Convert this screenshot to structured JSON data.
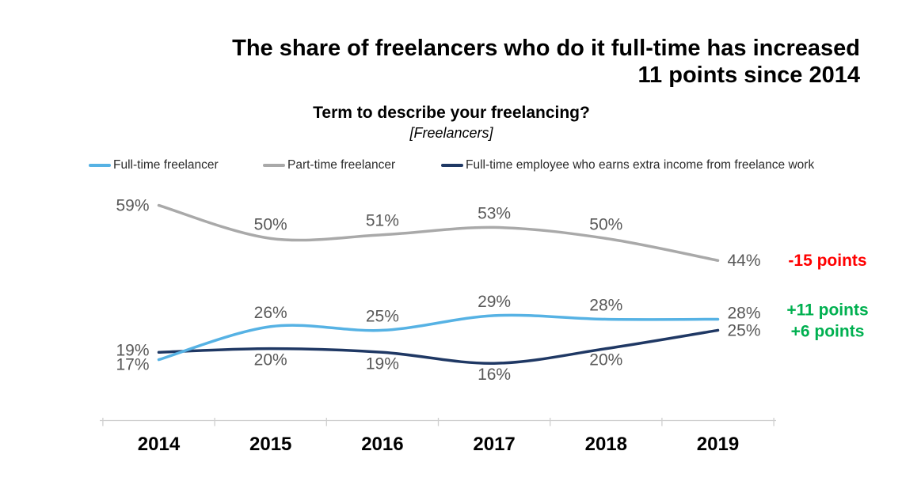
{
  "header": {
    "title": "The share of freelancers who do it full-time has increased\n11 points since 2014",
    "question": "Term to describe your freelancing?",
    "audience": "[Freelancers]"
  },
  "chart_data": {
    "type": "line",
    "title": "Term to describe your freelancing?",
    "subtitle": "[Freelancers]",
    "x": [
      "2014",
      "2015",
      "2016",
      "2017",
      "2018",
      "2019"
    ],
    "xlabel": "",
    "ylabel": "",
    "ylim": [
      0,
      65
    ],
    "grid": false,
    "legend_position": "top",
    "value_axis_visible": false,
    "label_color": "#595959",
    "axis_color": "#cfcfcf",
    "x_label_color": "#000000",
    "series": [
      {
        "name": "Full-time freelancer",
        "color": "#56b2e4",
        "values": [
          17,
          26,
          25,
          29,
          28,
          28
        ],
        "data_labels": [
          "17%",
          "26%",
          "25%",
          "29%",
          "28%",
          "28%"
        ],
        "label_positions": [
          "left-low",
          "above",
          "above",
          "above",
          "above",
          "right-high"
        ],
        "annotation": {
          "text": "+11 points",
          "color": "#00b050"
        }
      },
      {
        "name": "Part-time freelancer",
        "color": "#a9a9a9",
        "values": [
          59,
          50,
          51,
          53,
          50,
          44
        ],
        "data_labels": [
          "59%",
          "50%",
          "51%",
          "53%",
          "50%",
          "44%"
        ],
        "label_positions": [
          "left",
          "above",
          "above",
          "above",
          "above",
          "right"
        ],
        "annotation": {
          "text": "-15 points",
          "color": "#ff0000"
        }
      },
      {
        "name": "Full-time employee who earns extra income from freelance work",
        "color": "#1f3864",
        "values": [
          19,
          20,
          19,
          16,
          20,
          25
        ],
        "data_labels": [
          "19%",
          "20%",
          "19%",
          "16%",
          "20%",
          "25%"
        ],
        "label_positions": [
          "left-high",
          "below",
          "below",
          "below",
          "below",
          "right"
        ],
        "annotation": {
          "text": "+6 points",
          "color": "#00b050"
        }
      }
    ]
  }
}
